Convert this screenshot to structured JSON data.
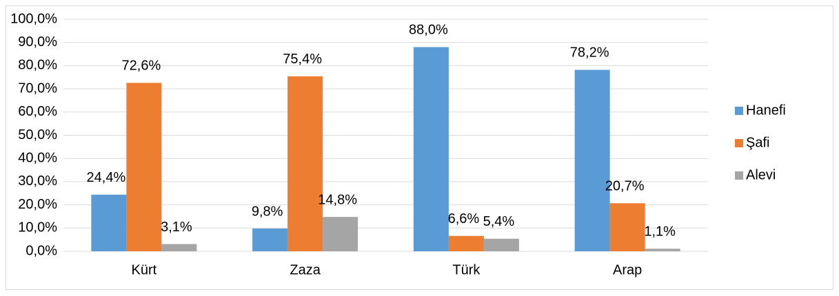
{
  "chart_data": {
    "type": "bar",
    "categories": [
      "Kürt",
      "Zaza",
      "Türk",
      "Arap"
    ],
    "series": [
      {
        "name": "Hanefi",
        "color": "#5b9bd5",
        "values": [
          24.4,
          9.8,
          88.0,
          78.2
        ],
        "value_labels": [
          "24,4%",
          "9,8%",
          "88,0%",
          "78,2%"
        ]
      },
      {
        "name": "Şafi",
        "color": "#ed7d31",
        "values": [
          72.6,
          75.4,
          6.6,
          20.7
        ],
        "value_labels": [
          "72,6%",
          "75,4%",
          "6,6%",
          "20,7%"
        ]
      },
      {
        "name": "Alevi",
        "color": "#a5a5a5",
        "values": [
          3.1,
          14.8,
          5.4,
          1.1
        ],
        "value_labels": [
          "3,1%",
          "14,8%",
          "5,4%",
          "1,1%"
        ]
      }
    ],
    "ylim": [
      0,
      100
    ],
    "yticks": [
      {
        "value": 0,
        "label": "0,0%"
      },
      {
        "value": 10,
        "label": "10,0%"
      },
      {
        "value": 20,
        "label": "20,0%"
      },
      {
        "value": 30,
        "label": "30,0%"
      },
      {
        "value": 40,
        "label": "40,0%"
      },
      {
        "value": 50,
        "label": "50,0%"
      },
      {
        "value": 60,
        "label": "60,0%"
      },
      {
        "value": 70,
        "label": "70,0%"
      },
      {
        "value": 80,
        "label": "80,0%"
      },
      {
        "value": 90,
        "label": "90,0%"
      },
      {
        "value": 100,
        "label": "100,0%"
      }
    ],
    "grid": true,
    "legend": "right"
  }
}
